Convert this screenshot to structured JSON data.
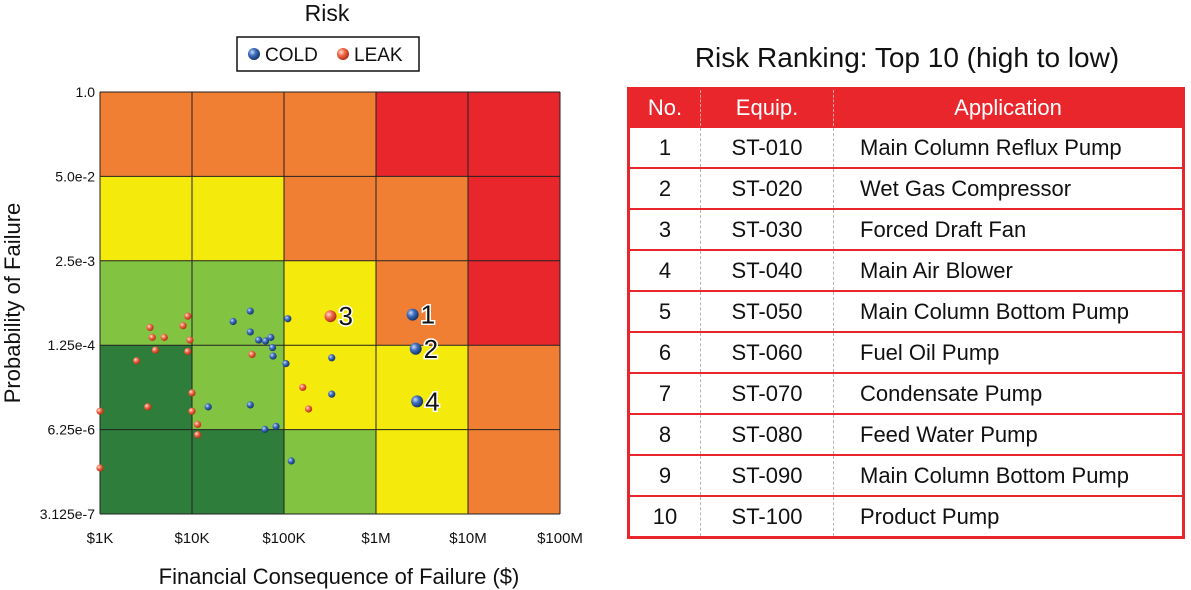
{
  "chart_data": {
    "type": "scatter",
    "title": "Risk",
    "xlabel": "Financial Consequence of Failure ($)",
    "ylabel": "Probability of Failure",
    "x_scale": "log",
    "y_scale": "log",
    "xlim": [
      1000,
      100000000
    ],
    "ylim": [
      3.125e-07,
      1.0
    ],
    "x_ticks": [
      {
        "value": 1000,
        "label": "$1K"
      },
      {
        "value": 10000,
        "label": "$10K"
      },
      {
        "value": 100000,
        "label": "$100K"
      },
      {
        "value": 1000000,
        "label": "$1M"
      },
      {
        "value": 10000000,
        "label": "$10M"
      },
      {
        "value": 100000000,
        "label": "$100M"
      }
    ],
    "y_ticks": [
      {
        "value": 3.125e-07,
        "label": "3.125e-7"
      },
      {
        "value": 6.25e-06,
        "label": "6.25e-6"
      },
      {
        "value": 0.000125,
        "label": "1.25e-4"
      },
      {
        "value": 0.0025,
        "label": "2.5e-3"
      },
      {
        "value": 0.05,
        "label": "5.0e-2"
      },
      {
        "value": 1.0,
        "label": "1.0"
      }
    ],
    "grid": true,
    "legend": {
      "position": "top"
    },
    "colors": {
      "very_low": "#2e7d3b",
      "low": "#82c341",
      "medium": "#f4ea0c",
      "high": "#f17f33",
      "very_high": "#e8262b",
      "cold": "#2d5aa3",
      "leak": "#ef5a3c"
    },
    "risk_matrix": [
      [
        "high",
        "high",
        "high",
        "very_high",
        "very_high"
      ],
      [
        "medium",
        "medium",
        "high",
        "high",
        "very_high"
      ],
      [
        "low",
        "low",
        "medium",
        "high",
        "very_high"
      ],
      [
        "very_low",
        "low",
        "medium",
        "medium",
        "high"
      ],
      [
        "very_low",
        "very_low",
        "low",
        "medium",
        "high"
      ]
    ],
    "series": [
      {
        "name": "COLD",
        "color": "#2d5aa3",
        "points": [
          {
            "x": 43000.0,
            "y": 0.00042
          },
          {
            "x": 28000.0,
            "y": 0.00029
          },
          {
            "x": 43000.0,
            "y": 0.0002
          },
          {
            "x": 53000.0,
            "y": 0.00015
          },
          {
            "x": 63000.0,
            "y": 0.000145
          },
          {
            "x": 72000.0,
            "y": 0.000165
          },
          {
            "x": 75000.0,
            "y": 0.000115
          },
          {
            "x": 76000.0,
            "y": 8.5e-05
          },
          {
            "x": 110000.0,
            "y": 0.00032
          },
          {
            "x": 15000.0,
            "y": 1.4e-05
          },
          {
            "x": 43000.0,
            "y": 1.5e-05
          },
          {
            "x": 62000.0,
            "y": 6.3e-06
          },
          {
            "x": 82000.0,
            "y": 7e-06
          },
          {
            "x": 120000.0,
            "y": 2.05e-06
          },
          {
            "x": 330000.0,
            "y": 8e-05
          },
          {
            "x": 330000.0,
            "y": 2.2e-05
          },
          {
            "x": 105000.0,
            "y": 6.5e-05
          }
        ]
      },
      {
        "name": "LEAK",
        "color": "#ef5a3c",
        "points": [
          {
            "x": 1000,
            "y": 1.2e-05
          },
          {
            "x": 1000,
            "y": 1.6e-06
          },
          {
            "x": 2500.0,
            "y": 7.2e-05
          },
          {
            "x": 3500.0,
            "y": 0.000235
          },
          {
            "x": 3700.0,
            "y": 0.000165
          },
          {
            "x": 4000.0,
            "y": 0.000105
          },
          {
            "x": 5000.0,
            "y": 0.000165
          },
          {
            "x": 8000.0,
            "y": 0.00025
          },
          {
            "x": 9000.0,
            "y": 0.00035
          },
          {
            "x": 9000.0,
            "y": 0.0001
          },
          {
            "x": 9500.0,
            "y": 0.00015
          },
          {
            "x": 3300.0,
            "y": 1.4e-05
          },
          {
            "x": 10000.0,
            "y": 2.3e-05
          },
          {
            "x": 10000.0,
            "y": 1.2e-05
          },
          {
            "x": 11500.0,
            "y": 7.5e-06
          },
          {
            "x": 11500.0,
            "y": 5.2e-06
          },
          {
            "x": 45000.0,
            "y": 9e-05
          },
          {
            "x": 160000.0,
            "y": 2.8e-05
          },
          {
            "x": 185000.0,
            "y": 1.3e-05
          }
        ]
      }
    ],
    "labeled_points": [
      {
        "label": "3",
        "series": "LEAK",
        "x": 320000.0,
        "y": 0.00035
      },
      {
        "label": "1",
        "series": "COLD",
        "x": 2500000.0,
        "y": 0.00037
      },
      {
        "label": "2",
        "series": "COLD",
        "x": 2700000.0,
        "y": 0.00011
      },
      {
        "label": "4",
        "series": "COLD",
        "x": 2800000.0,
        "y": 1.7e-05
      }
    ]
  },
  "ranking": {
    "title": "Risk Ranking: Top 10 (high to low)",
    "headers": {
      "no": "No.",
      "equip": "Equip.",
      "application": "Application"
    },
    "rows": [
      {
        "no": "1",
        "equip": "ST-010",
        "application": "Main Column Reflux Pump"
      },
      {
        "no": "2",
        "equip": "ST-020",
        "application": "Wet Gas Compressor"
      },
      {
        "no": "3",
        "equip": "ST-030",
        "application": "Forced Draft Fan"
      },
      {
        "no": "4",
        "equip": "ST-040",
        "application": "Main Air Blower"
      },
      {
        "no": "5",
        "equip": "ST-050",
        "application": "Main Column Bottom Pump"
      },
      {
        "no": "6",
        "equip": "ST-060",
        "application": "Fuel Oil Pump"
      },
      {
        "no": "7",
        "equip": "ST-070",
        "application": "Condensate Pump"
      },
      {
        "no": "8",
        "equip": "ST-080",
        "application": "Feed Water Pump"
      },
      {
        "no": "9",
        "equip": "ST-090",
        "application": "Main Column Bottom Pump"
      },
      {
        "no": "10",
        "equip": "ST-100",
        "application": "Product Pump"
      }
    ]
  }
}
